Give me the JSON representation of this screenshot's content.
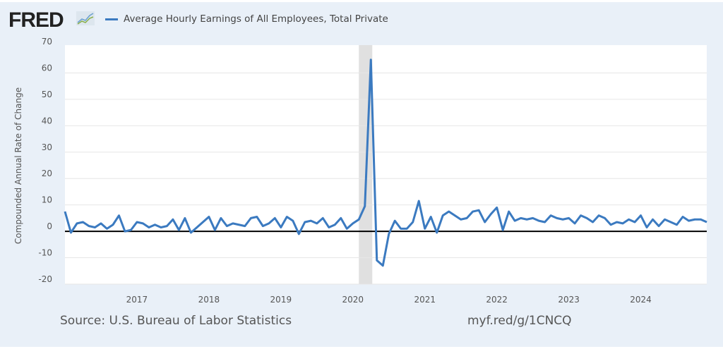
{
  "header": {
    "logo": "FRED",
    "legend_label": "Average Hourly Earnings of All Employees, Total Private"
  },
  "footer": {
    "source": "Source: U.S. Bureau of Labor Statistics",
    "link": "myf.red/g/1CNCQ"
  },
  "colors": {
    "series": "#3b7ac0",
    "recession": "#e0e0e0",
    "background": "#e9f0f8"
  },
  "chart_data": {
    "type": "line",
    "title": "",
    "xlabel": "",
    "ylabel": "Compounded Annual Rate of Change",
    "ylim": [
      -20,
      70
    ],
    "yticks": [
      70,
      60,
      50,
      40,
      30,
      20,
      10,
      0,
      -10,
      -20
    ],
    "xticks": [
      "2017",
      "2018",
      "2019",
      "2020",
      "2021",
      "2022",
      "2023",
      "2024"
    ],
    "x_start": "2016-01",
    "frequency": "monthly",
    "recession": [
      "2020-02",
      "2020-04"
    ],
    "grid": true,
    "series": [
      {
        "name": "Average Hourly Earnings of All Employees, Total Private",
        "values": [
          7.5,
          -0.5,
          3,
          3.5,
          2,
          1.5,
          3,
          1,
          2.5,
          6,
          0,
          0.5,
          3.5,
          3,
          1.5,
          2.5,
          1.5,
          2,
          4.5,
          0.5,
          5,
          -0.5,
          1.5,
          3.5,
          5.5,
          0.5,
          5,
          2,
          3,
          2.5,
          2,
          5,
          5.5,
          2,
          3,
          5,
          1.5,
          5.5,
          4,
          -1,
          3.5,
          4,
          3,
          5,
          1.5,
          2.5,
          5,
          1,
          3,
          4.5,
          9.5,
          65,
          -11,
          -13,
          -1,
          4,
          1,
          1,
          3.5,
          11.5,
          1,
          5.5,
          -0.5,
          6,
          7.5,
          6,
          4.5,
          5,
          7.5,
          8,
          3.5,
          6.5,
          9,
          0.5,
          7.5,
          4,
          5,
          4.5,
          5,
          4,
          3.5,
          6,
          5,
          4.5,
          5,
          3,
          6,
          5,
          3.5,
          6,
          5,
          2.5,
          3.5,
          3,
          4.5,
          3.5,
          6,
          1.5,
          4.5,
          2,
          4.5,
          3.5,
          2.5,
          5.5,
          4,
          4.5,
          4.5,
          3.5
        ]
      }
    ]
  }
}
